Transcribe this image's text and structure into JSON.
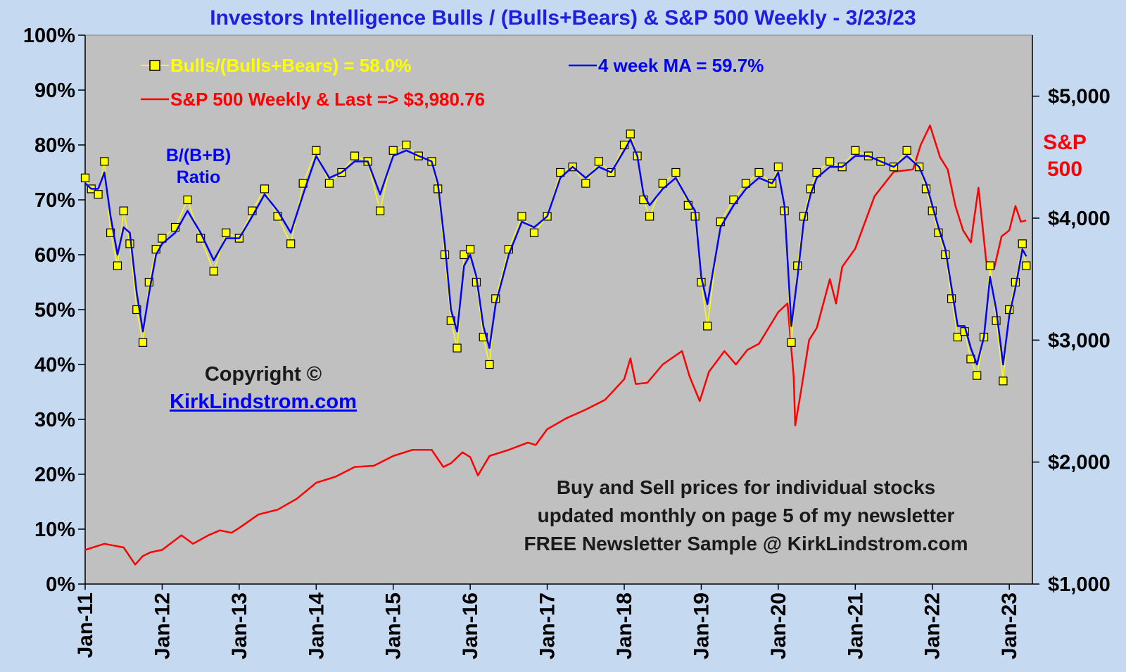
{
  "chart_data": {
    "type": "line",
    "title": "Investors Intelligence  Bulls / (Bulls+Bears)  & S&P 500 Weekly   -  3/23/23",
    "y_left": {
      "min": 0,
      "max": 100,
      "ticks": [
        "0%",
        "10%",
        "20%",
        "30%",
        "40%",
        "50%",
        "60%",
        "70%",
        "80%",
        "90%",
        "100%"
      ]
    },
    "y_right": {
      "min": 1000,
      "max": 5500,
      "ticks": [
        "$1,000",
        "$2,000",
        "$3,000",
        "$4,000",
        "$5,000"
      ],
      "tick_values": [
        1000,
        2000,
        3000,
        4000,
        5000
      ],
      "label_line1": "S&P",
      "label_line2": "500"
    },
    "x_axis": {
      "min": 2011.0,
      "max": 2023.3,
      "ticks": [
        "Jan-11",
        "Jan-12",
        "Jan-13",
        "Jan-14",
        "Jan-15",
        "Jan-16",
        "Jan-17",
        "Jan-18",
        "Jan-19",
        "Jan-20",
        "Jan-21",
        "Jan-22",
        "Jan-23"
      ],
      "tick_values": [
        2011,
        2012,
        2013,
        2014,
        2015,
        2016,
        2017,
        2018,
        2019,
        2020,
        2021,
        2022,
        2023
      ]
    },
    "grid": false,
    "series": [
      {
        "name": "Bulls/(Bulls+Bears) = 58.0%",
        "axis": "left",
        "color": "#ffff00",
        "marker": "square",
        "x": [
          2011.0,
          2011.08,
          2011.17,
          2011.25,
          2011.33,
          2011.42,
          2011.5,
          2011.58,
          2011.67,
          2011.75,
          2011.83,
          2011.92,
          2012.0,
          2012.17,
          2012.33,
          2012.5,
          2012.67,
          2012.83,
          2013.0,
          2013.17,
          2013.33,
          2013.5,
          2013.67,
          2013.83,
          2014.0,
          2014.17,
          2014.33,
          2014.5,
          2014.67,
          2014.83,
          2015.0,
          2015.17,
          2015.33,
          2015.5,
          2015.58,
          2015.67,
          2015.75,
          2015.83,
          2015.92,
          2016.0,
          2016.08,
          2016.17,
          2016.25,
          2016.33,
          2016.5,
          2016.67,
          2016.83,
          2017.0,
          2017.17,
          2017.33,
          2017.5,
          2017.67,
          2017.83,
          2018.0,
          2018.08,
          2018.17,
          2018.25,
          2018.33,
          2018.5,
          2018.67,
          2018.83,
          2018.92,
          2019.0,
          2019.08,
          2019.25,
          2019.42,
          2019.58,
          2019.75,
          2019.92,
          2020.0,
          2020.08,
          2020.17,
          2020.25,
          2020.33,
          2020.42,
          2020.5,
          2020.67,
          2020.83,
          2021.0,
          2021.17,
          2021.33,
          2021.5,
          2021.67,
          2021.83,
          2021.92,
          2022.0,
          2022.08,
          2022.17,
          2022.25,
          2022.33,
          2022.42,
          2022.5,
          2022.58,
          2022.67,
          2022.75,
          2022.83,
          2022.92,
          2023.0,
          2023.08,
          2023.17,
          2023.22
        ],
        "values": [
          74,
          72,
          71,
          77,
          64,
          58,
          68,
          62,
          50,
          44,
          55,
          61,
          63,
          65,
          70,
          63,
          57,
          64,
          63,
          68,
          72,
          67,
          62,
          73,
          79,
          73,
          75,
          78,
          77,
          68,
          79,
          80,
          78,
          77,
          72,
          60,
          48,
          43,
          60,
          61,
          55,
          45,
          40,
          52,
          61,
          67,
          64,
          67,
          75,
          76,
          73,
          77,
          75,
          80,
          82,
          78,
          70,
          67,
          73,
          75,
          69,
          67,
          55,
          47,
          66,
          70,
          73,
          75,
          73,
          76,
          68,
          44,
          58,
          67,
          72,
          75,
          77,
          76,
          79,
          78,
          77,
          76,
          79,
          76,
          72,
          68,
          64,
          60,
          52,
          45,
          46,
          41,
          38,
          45,
          58,
          48,
          37,
          50,
          55,
          62,
          58
        ]
      },
      {
        "name": "4 week MA = 59.7%",
        "axis": "left",
        "color": "#0000ff",
        "x": [
          2011.0,
          2011.08,
          2011.17,
          2011.25,
          2011.33,
          2011.42,
          2011.5,
          2011.58,
          2011.67,
          2011.75,
          2011.83,
          2011.92,
          2012.0,
          2012.17,
          2012.33,
          2012.5,
          2012.67,
          2012.83,
          2013.0,
          2013.17,
          2013.33,
          2013.5,
          2013.67,
          2013.83,
          2014.0,
          2014.17,
          2014.33,
          2014.5,
          2014.67,
          2014.83,
          2015.0,
          2015.17,
          2015.33,
          2015.5,
          2015.58,
          2015.67,
          2015.75,
          2015.83,
          2015.92,
          2016.0,
          2016.08,
          2016.17,
          2016.25,
          2016.33,
          2016.5,
          2016.67,
          2016.83,
          2017.0,
          2017.17,
          2017.33,
          2017.5,
          2017.67,
          2017.83,
          2018.0,
          2018.08,
          2018.17,
          2018.25,
          2018.33,
          2018.5,
          2018.67,
          2018.83,
          2018.92,
          2019.0,
          2019.08,
          2019.25,
          2019.42,
          2019.58,
          2019.75,
          2019.92,
          2020.0,
          2020.08,
          2020.17,
          2020.25,
          2020.33,
          2020.42,
          2020.5,
          2020.67,
          2020.83,
          2021.0,
          2021.17,
          2021.33,
          2021.5,
          2021.67,
          2021.83,
          2021.92,
          2022.0,
          2022.08,
          2022.17,
          2022.25,
          2022.33,
          2022.42,
          2022.5,
          2022.58,
          2022.67,
          2022.75,
          2022.83,
          2022.92,
          2023.0,
          2023.08,
          2023.17,
          2023.22
        ],
        "values": [
          73,
          72,
          72,
          75,
          67,
          60,
          65,
          64,
          53,
          46,
          53,
          60,
          62,
          64,
          68,
          64,
          59,
          63,
          63,
          67,
          71,
          68,
          64,
          71,
          78,
          74,
          75,
          77,
          77,
          71,
          78,
          79,
          78,
          77,
          73,
          62,
          50,
          46,
          58,
          60,
          56,
          47,
          43,
          51,
          60,
          66,
          65,
          67,
          74,
          76,
          74,
          76,
          75,
          79,
          81,
          78,
          71,
          69,
          72,
          74,
          70,
          68,
          56,
          51,
          65,
          69,
          72,
          74,
          73,
          75,
          69,
          47,
          56,
          66,
          71,
          74,
          76,
          76,
          78,
          78,
          77,
          76,
          78,
          76,
          73,
          69,
          65,
          61,
          54,
          47,
          47,
          43,
          40,
          45,
          56,
          50,
          40,
          49,
          54,
          61,
          59.7
        ]
      },
      {
        "name": "S&P 500 Weekly & Last =>  $3,980.76",
        "axis": "right",
        "color": "#ff0000",
        "x": [
          2011.0,
          2011.25,
          2011.5,
          2011.65,
          2011.75,
          2011.85,
          2012.0,
          2012.25,
          2012.4,
          2012.6,
          2012.75,
          2012.9,
          2013.0,
          2013.25,
          2013.5,
          2013.75,
          2014.0,
          2014.25,
          2014.5,
          2014.75,
          2015.0,
          2015.25,
          2015.5,
          2015.65,
          2015.75,
          2015.9,
          2016.0,
          2016.1,
          2016.25,
          2016.5,
          2016.75,
          2016.85,
          2017.0,
          2017.25,
          2017.5,
          2017.75,
          2018.0,
          2018.08,
          2018.15,
          2018.3,
          2018.5,
          2018.75,
          2018.85,
          2018.98,
          2019.1,
          2019.3,
          2019.45,
          2019.6,
          2019.75,
          2020.0,
          2020.12,
          2020.2,
          2020.22,
          2020.3,
          2020.4,
          2020.5,
          2020.67,
          2020.75,
          2020.83,
          2021.0,
          2021.25,
          2021.5,
          2021.75,
          2021.85,
          2021.97,
          2022.1,
          2022.2,
          2022.3,
          2022.4,
          2022.5,
          2022.6,
          2022.7,
          2022.8,
          2022.9,
          2023.0,
          2023.08,
          2023.15,
          2023.22
        ],
        "values": [
          1280,
          1330,
          1300,
          1160,
          1230,
          1260,
          1280,
          1400,
          1330,
          1400,
          1440,
          1420,
          1460,
          1570,
          1610,
          1700,
          1830,
          1880,
          1960,
          1970,
          2050,
          2100,
          2100,
          1960,
          1990,
          2080,
          2040,
          1890,
          2050,
          2100,
          2160,
          2140,
          2270,
          2360,
          2430,
          2510,
          2680,
          2850,
          2640,
          2650,
          2800,
          2910,
          2700,
          2500,
          2740,
          2910,
          2800,
          2920,
          2970,
          3230,
          3300,
          2700,
          2300,
          2600,
          3000,
          3100,
          3500,
          3300,
          3600,
          3750,
          4180,
          4380,
          4400,
          4600,
          4760,
          4500,
          4400,
          4100,
          3900,
          3800,
          4250,
          3650,
          3580,
          3850,
          3900,
          4100,
          3970,
          3980.76
        ]
      }
    ],
    "annotations": {
      "ratio_line1": "B/(B+B)",
      "ratio_line2": "Ratio",
      "copyright": "Copyright ©",
      "site": "KirkLindstrom.com",
      "note_line1": "Buy and Sell prices for individual stocks",
      "note_line2": "updated monthly on page 5 of my newsletter",
      "note_line3": "FREE Newsletter Sample @ KirkLindstrom.com"
    },
    "legend_placement": "top-left"
  },
  "colors": {
    "background": "#c5d9f1",
    "plot_area": "#c0c0c0",
    "title": "#1f1fe0",
    "bulls": "#ffff00",
    "ma": "#0000ff",
    "sp500": "#ff0000"
  }
}
